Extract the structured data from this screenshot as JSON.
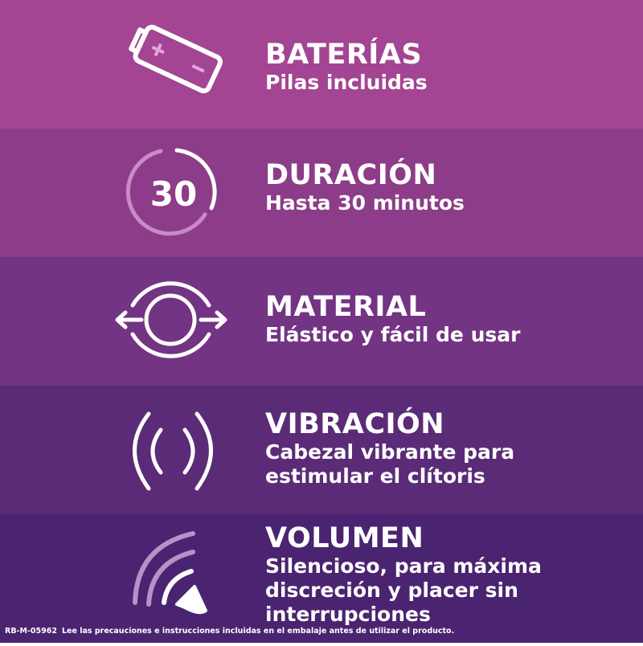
{
  "colors": {
    "band1": "#A34592",
    "band2": "#8D3C89",
    "band3": "#733483",
    "band4": "#5B2B78",
    "band5": "#4A2470",
    "accent_light": "#D9A6DB"
  },
  "features": [
    {
      "icon": "battery-icon",
      "title": "BATERÍAS",
      "lines": [
        "Pilas incluidas"
      ]
    },
    {
      "icon": "timer-30-icon",
      "icon_text": "30",
      "title": "DURACIÓN",
      "lines": [
        "Hasta 30 minutos"
      ]
    },
    {
      "icon": "stretch-circle-icon",
      "title": "MATERIAL",
      "lines": [
        "Elástico y fácil de usar"
      ]
    },
    {
      "icon": "vibration-icon",
      "title": "VIBRACIÓN",
      "lines": [
        "Cabezal vibrante para",
        "estimular el clítoris"
      ]
    },
    {
      "icon": "volume-icon",
      "title": "VOLUMEN",
      "lines": [
        "Silencioso, para máxima",
        "discreción y placer sin",
        "interrupciones"
      ]
    }
  ],
  "footer": {
    "code": "RB-M-05962",
    "text": "Lee las precauciones e instrucciones incluidas en el embalaje antes de utilizar el producto."
  }
}
